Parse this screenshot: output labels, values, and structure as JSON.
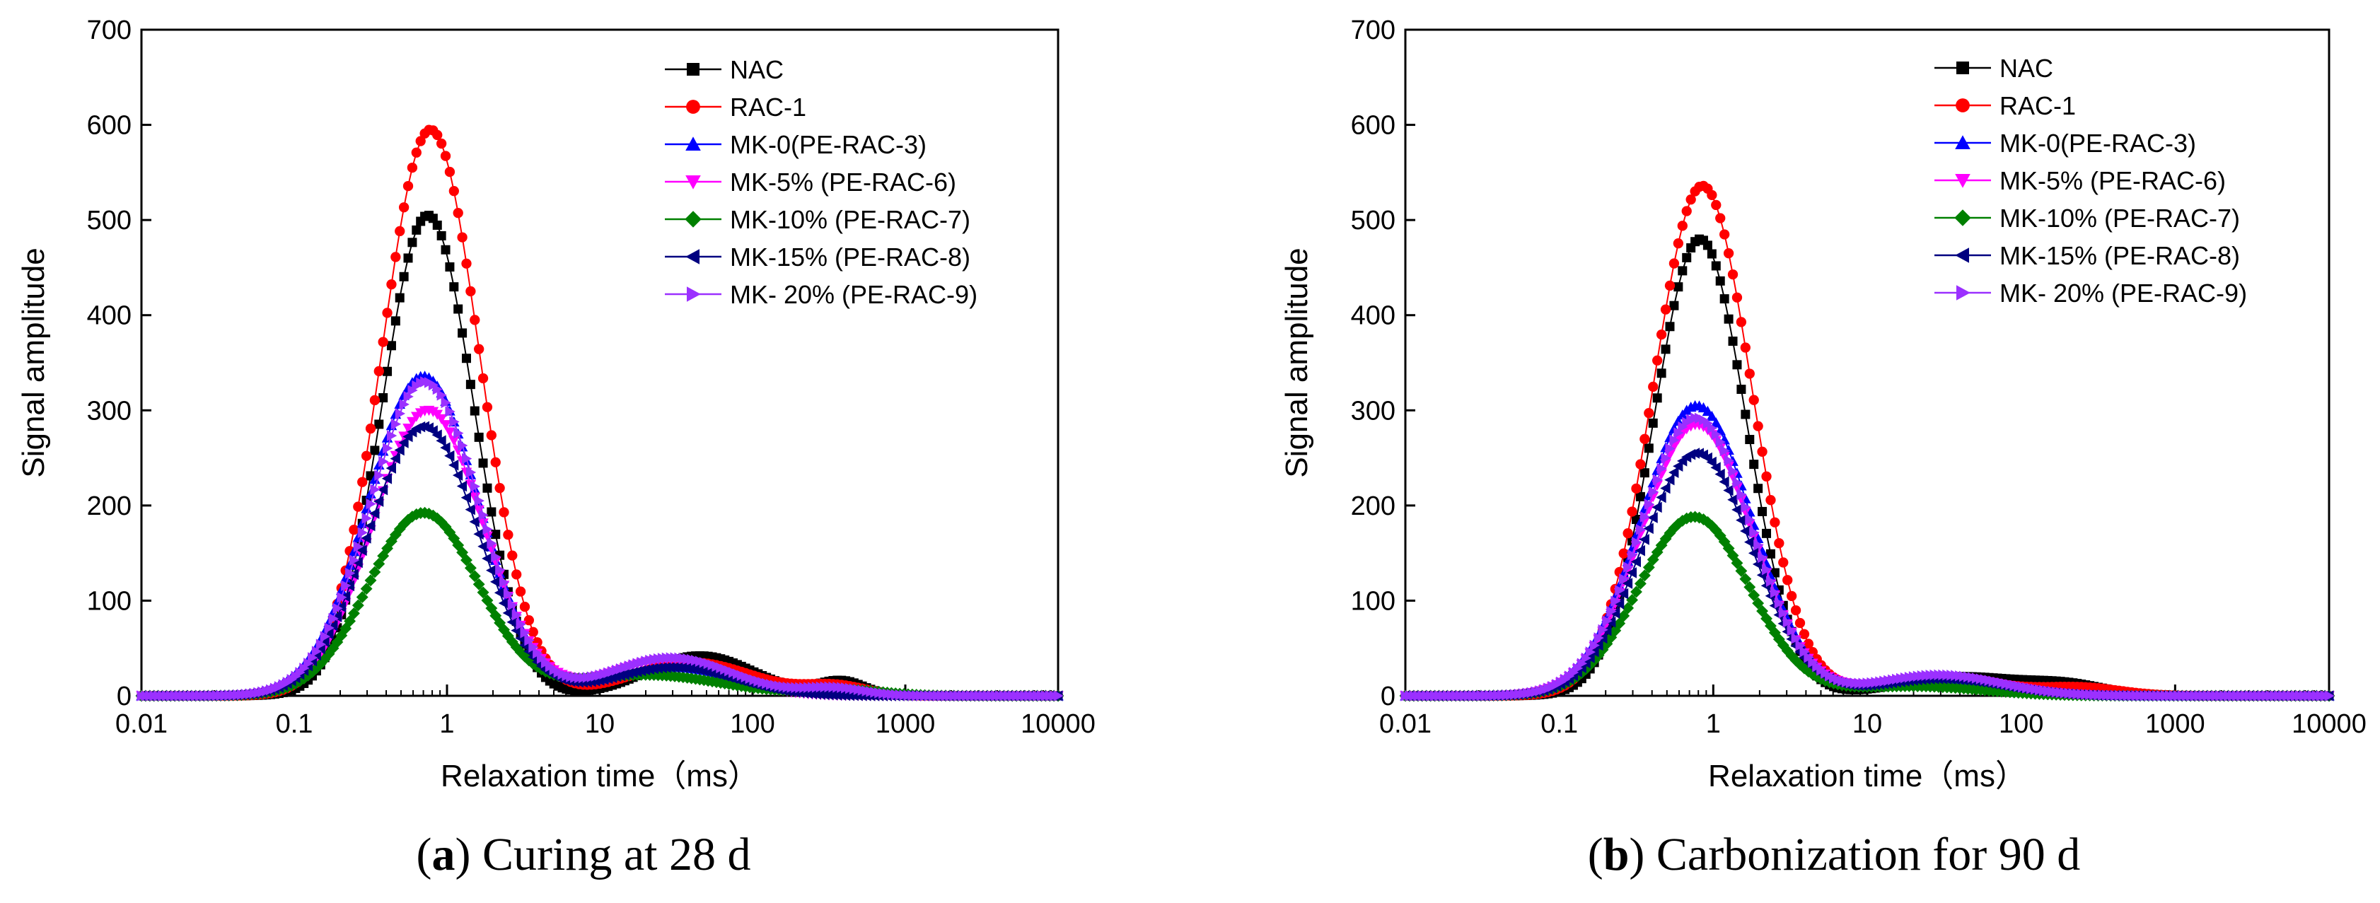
{
  "chart_data": [
    {
      "type": "line",
      "panel": "a",
      "caption_letter": "a",
      "caption_text": "Curing at 28 d",
      "xlabel": "Relaxation time（ms）",
      "ylabel": "Signal amplitude",
      "xscale": "log",
      "xlim": [
        0.01,
        10000
      ],
      "ylim": [
        0,
        700
      ],
      "xticks": [
        "0.01",
        "0.1",
        "1",
        "10",
        "100",
        "1000",
        "10000"
      ],
      "yticks": [
        "0",
        "100",
        "200",
        "300",
        "400",
        "500",
        "600",
        "700"
      ],
      "legend_position": "top-right",
      "series": [
        {
          "name": "NAC",
          "color": "#000000",
          "marker": "square",
          "peaks": [
            {
              "center": 0.75,
              "amplitude": 505,
              "width": 0.3
            },
            {
              "center": 45,
              "amplitude": 42,
              "width": 0.35
            },
            {
              "center": 380,
              "amplitude": 15,
              "width": 0.15
            }
          ]
        },
        {
          "name": "RAC-1",
          "color": "#ff0000",
          "marker": "circle",
          "peaks": [
            {
              "center": 0.78,
              "amplitude": 595,
              "width": 0.32
            },
            {
              "center": 40,
              "amplitude": 35,
              "width": 0.4
            },
            {
              "center": 350,
              "amplitude": 10,
              "width": 0.2
            }
          ]
        },
        {
          "name": "MK-0(PE-RAC-3)",
          "color": "#0000ff",
          "marker": "triangle-up",
          "peaks": [
            {
              "center": 0.7,
              "amplitude": 336,
              "width": 0.36
            },
            {
              "center": 30,
              "amplitude": 30,
              "width": 0.42
            },
            {
              "center": 450,
              "amplitude": 6,
              "width": 0.2
            }
          ]
        },
        {
          "name": "MK-5% (PE-RAC-6)",
          "color": "#ff00ff",
          "marker": "triangle-down",
          "peaks": [
            {
              "center": 0.75,
              "amplitude": 300,
              "width": 0.36
            },
            {
              "center": 28,
              "amplitude": 38,
              "width": 0.38
            }
          ]
        },
        {
          "name": "MK-10% (PE-RAC-7)",
          "color": "#008000",
          "marker": "diamond",
          "peaks": [
            {
              "center": 0.7,
              "amplitude": 192,
              "width": 0.36
            },
            {
              "center": 20,
              "amplitude": 22,
              "width": 0.5
            },
            {
              "center": 400,
              "amplitude": 6,
              "width": 0.25
            }
          ]
        },
        {
          "name": "MK-15% (PE-RAC-8)",
          "color": "#000080",
          "marker": "triangle-left",
          "peaks": [
            {
              "center": 0.7,
              "amplitude": 283,
              "width": 0.36
            },
            {
              "center": 30,
              "amplitude": 30,
              "width": 0.4
            }
          ]
        },
        {
          "name": "MK- 20% (PE-RAC-9)",
          "color": "#9b30ff",
          "marker": "triangle-right",
          "peaks": [
            {
              "center": 0.72,
              "amplitude": 330,
              "width": 0.36
            },
            {
              "center": 30,
              "amplitude": 40,
              "width": 0.4
            },
            {
              "center": 350,
              "amplitude": 8,
              "width": 0.2
            }
          ]
        }
      ]
    },
    {
      "type": "line",
      "panel": "b",
      "caption_letter": "b",
      "caption_text": "Carbonization for 90 d",
      "xlabel": "Relaxation time（ms）",
      "ylabel": "Signal amplitude",
      "xscale": "log",
      "xlim": [
        0.01,
        10000
      ],
      "ylim": [
        0,
        700
      ],
      "xticks": [
        "0.01",
        "0.1",
        "1",
        "10",
        "100",
        "1000",
        "10000"
      ],
      "yticks": [
        "0",
        "100",
        "200",
        "300",
        "400",
        "500",
        "600",
        "700"
      ],
      "legend_position": "top-right",
      "series": [
        {
          "name": "NAC",
          "color": "#000000",
          "marker": "square",
          "peaks": [
            {
              "center": 0.82,
              "amplitude": 480,
              "width": 0.3
            },
            {
              "center": 40,
              "amplitude": 20,
              "width": 0.4
            },
            {
              "center": 200,
              "amplitude": 10,
              "width": 0.25
            }
          ]
        },
        {
          "name": "RAC-1",
          "color": "#ff0000",
          "marker": "circle",
          "peaks": [
            {
              "center": 0.85,
              "amplitude": 536,
              "width": 0.32
            },
            {
              "center": 30,
              "amplitude": 18,
              "width": 0.4
            },
            {
              "center": 250,
              "amplitude": 8,
              "width": 0.25
            }
          ]
        },
        {
          "name": "MK-0(PE-RAC-3)",
          "color": "#0000ff",
          "marker": "triangle-up",
          "peaks": [
            {
              "center": 0.78,
              "amplitude": 305,
              "width": 0.36
            },
            {
              "center": 30,
              "amplitude": 18,
              "width": 0.4
            }
          ]
        },
        {
          "name": "MK-5% (PE-RAC-6)",
          "color": "#ff00ff",
          "marker": "triangle-down",
          "peaks": [
            {
              "center": 0.78,
              "amplitude": 285,
              "width": 0.36
            },
            {
              "center": 30,
              "amplitude": 20,
              "width": 0.4
            }
          ]
        },
        {
          "name": "MK-10% (PE-RAC-7)",
          "color": "#008000",
          "marker": "diamond",
          "peaks": [
            {
              "center": 0.75,
              "amplitude": 188,
              "width": 0.36
            },
            {
              "center": 20,
              "amplitude": 10,
              "width": 0.45
            }
          ]
        },
        {
          "name": "MK-15% (PE-RAC-8)",
          "color": "#000080",
          "marker": "triangle-left",
          "peaks": [
            {
              "center": 0.78,
              "amplitude": 255,
              "width": 0.36
            },
            {
              "center": 30,
              "amplitude": 18,
              "width": 0.4
            }
          ]
        },
        {
          "name": "MK- 20% (PE-RAC-9)",
          "color": "#9b30ff",
          "marker": "triangle-right",
          "peaks": [
            {
              "center": 0.78,
              "amplitude": 292,
              "width": 0.36
            },
            {
              "center": 30,
              "amplitude": 22,
              "width": 0.4
            }
          ]
        }
      ]
    }
  ]
}
